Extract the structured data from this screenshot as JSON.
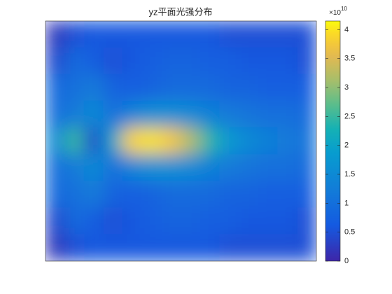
{
  "chart_data": {
    "type": "heatmap",
    "title": "yz平面光强分布",
    "colormap": "parula",
    "values": [
      [
        0.2,
        0.5,
        0.6,
        0.6,
        0.6,
        0.6,
        0.6,
        0.6,
        0.6,
        0.5,
        0.5,
        0.5,
        0.5,
        0.5
      ],
      [
        0.4,
        0.9,
        0.7,
        0.5,
        0.6,
        0.7,
        0.8,
        0.8,
        0.7,
        0.7,
        0.6,
        0.6,
        0.6,
        0.5
      ],
      [
        0.9,
        1.0,
        1.2,
        0.8,
        0.7,
        0.8,
        0.9,
        0.9,
        0.9,
        0.8,
        0.8,
        0.7,
        0.7,
        0.7
      ],
      [
        1.0,
        1.2,
        1.5,
        1.0,
        1.4,
        1.6,
        1.6,
        1.5,
        1.3,
        1.2,
        1.1,
        1.0,
        1.0,
        0.9
      ],
      [
        1.5,
        2.5,
        0.4,
        2.0,
        3.9,
        4.0,
        3.8,
        3.2,
        2.4,
        1.8,
        1.5,
        1.3,
        1.2,
        1.1
      ],
      [
        1.0,
        1.2,
        1.5,
        1.0,
        1.4,
        1.6,
        1.6,
        1.5,
        1.3,
        1.2,
        1.1,
        1.0,
        1.0,
        0.9
      ],
      [
        0.9,
        1.0,
        1.2,
        0.8,
        0.7,
        0.8,
        0.9,
        0.9,
        0.9,
        0.8,
        0.8,
        0.7,
        0.7,
        0.7
      ],
      [
        0.4,
        0.9,
        0.7,
        0.5,
        0.6,
        0.7,
        0.8,
        0.8,
        0.7,
        0.7,
        0.6,
        0.6,
        0.6,
        0.5
      ],
      [
        0.2,
        0.5,
        0.6,
        0.6,
        0.6,
        0.6,
        0.6,
        0.6,
        0.6,
        0.5,
        0.5,
        0.5,
        0.5,
        0.5
      ]
    ],
    "clim": [
      0,
      4.15
    ],
    "cticks": [
      0,
      0.5,
      1,
      1.5,
      2,
      2.5,
      3,
      3.5,
      4
    ],
    "colorbar_exponent": {
      "base": "×10",
      "power": "10"
    }
  }
}
